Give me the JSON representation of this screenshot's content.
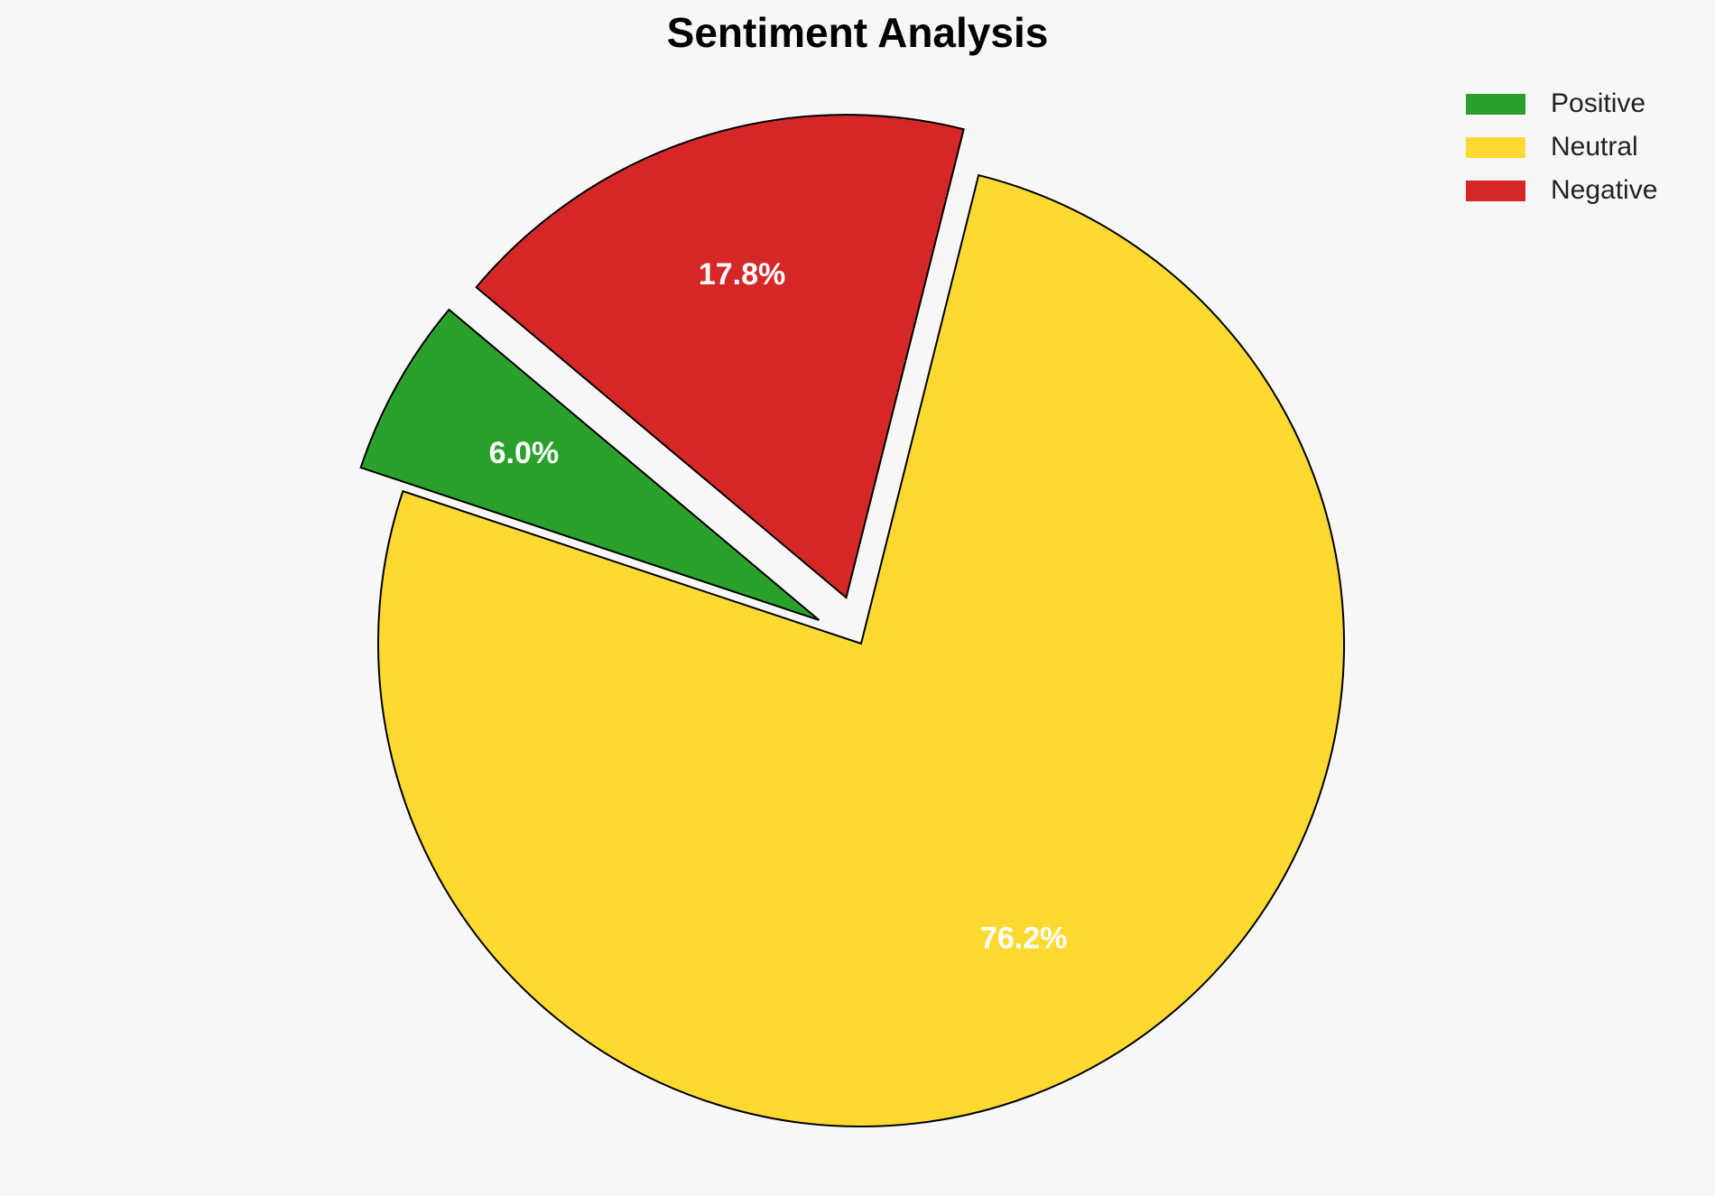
{
  "chart_data": {
    "type": "pie",
    "title": "Sentiment Analysis",
    "categories": [
      "Positive",
      "Neutral",
      "Negative"
    ],
    "values": [
      6.0,
      76.2,
      17.8
    ],
    "value_labels": [
      "6.0%",
      "76.2%",
      "17.8%"
    ],
    "colors": [
      "#2ca02c",
      "#fdd931",
      "#d62728"
    ],
    "explode": [
      0.1,
      0,
      0.1
    ],
    "startangle": 140,
    "legend": "upper right"
  }
}
